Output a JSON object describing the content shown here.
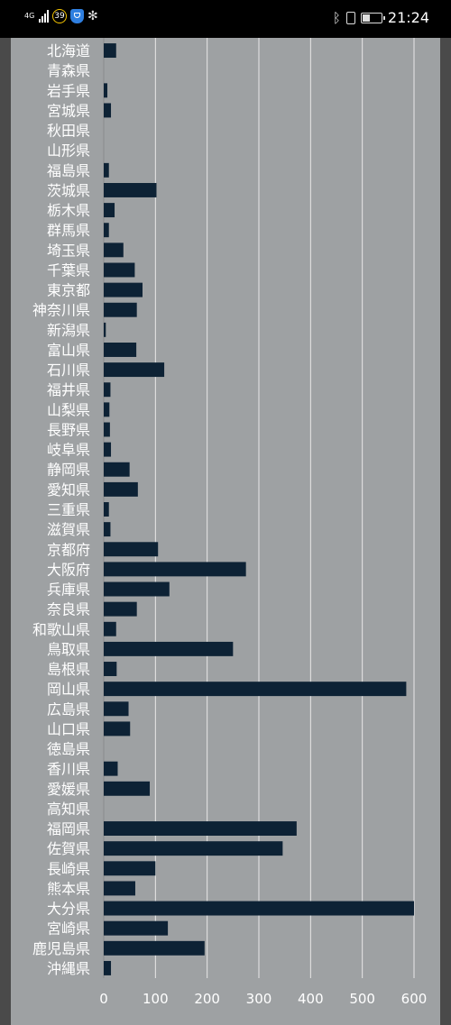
{
  "status_bar": {
    "network": "4G",
    "badge_count": "39",
    "time": "21:24",
    "battery_level_pct": 40
  },
  "chart_data": {
    "type": "bar",
    "orientation": "horizontal",
    "title": "",
    "xlabel": "",
    "ylabel": "",
    "xlim": [
      0,
      600
    ],
    "x_ticks": [
      "0",
      "100",
      "200",
      "300",
      "400",
      "500",
      "600"
    ],
    "grid": true,
    "colors": {
      "bar": "#0d2235",
      "grid": "#e8e8e8",
      "label": "#ffffff",
      "background": "#9ea1a3"
    },
    "categories": [
      "北海道",
      "青森県",
      "岩手県",
      "宮城県",
      "秋田県",
      "山形県",
      "福島県",
      "茨城県",
      "栃木県",
      "群馬県",
      "埼玉県",
      "千葉県",
      "東京都",
      "神奈川県",
      "新潟県",
      "富山県",
      "石川県",
      "福井県",
      "山梨県",
      "長野県",
      "岐阜県",
      "静岡県",
      "愛知県",
      "三重県",
      "滋賀県",
      "京都府",
      "大阪府",
      "兵庫県",
      "奈良県",
      "和歌山県",
      "鳥取県",
      "島根県",
      "岡山県",
      "広島県",
      "山口県",
      "徳島県",
      "香川県",
      "愛媛県",
      "高知県",
      "福岡県",
      "佐賀県",
      "長崎県",
      "熊本県",
      "大分県",
      "宮崎県",
      "鹿児島県",
      "沖縄県"
    ],
    "values": [
      24,
      0,
      7,
      14,
      0,
      0,
      10,
      102,
      21,
      10,
      38,
      60,
      75,
      64,
      4,
      63,
      117,
      13,
      11,
      12,
      14,
      50,
      66,
      10,
      13,
      105,
      275,
      127,
      64,
      24,
      250,
      25,
      585,
      48,
      51,
      0,
      27,
      89,
      0,
      373,
      346,
      100,
      61,
      600,
      124,
      195,
      14
    ]
  }
}
